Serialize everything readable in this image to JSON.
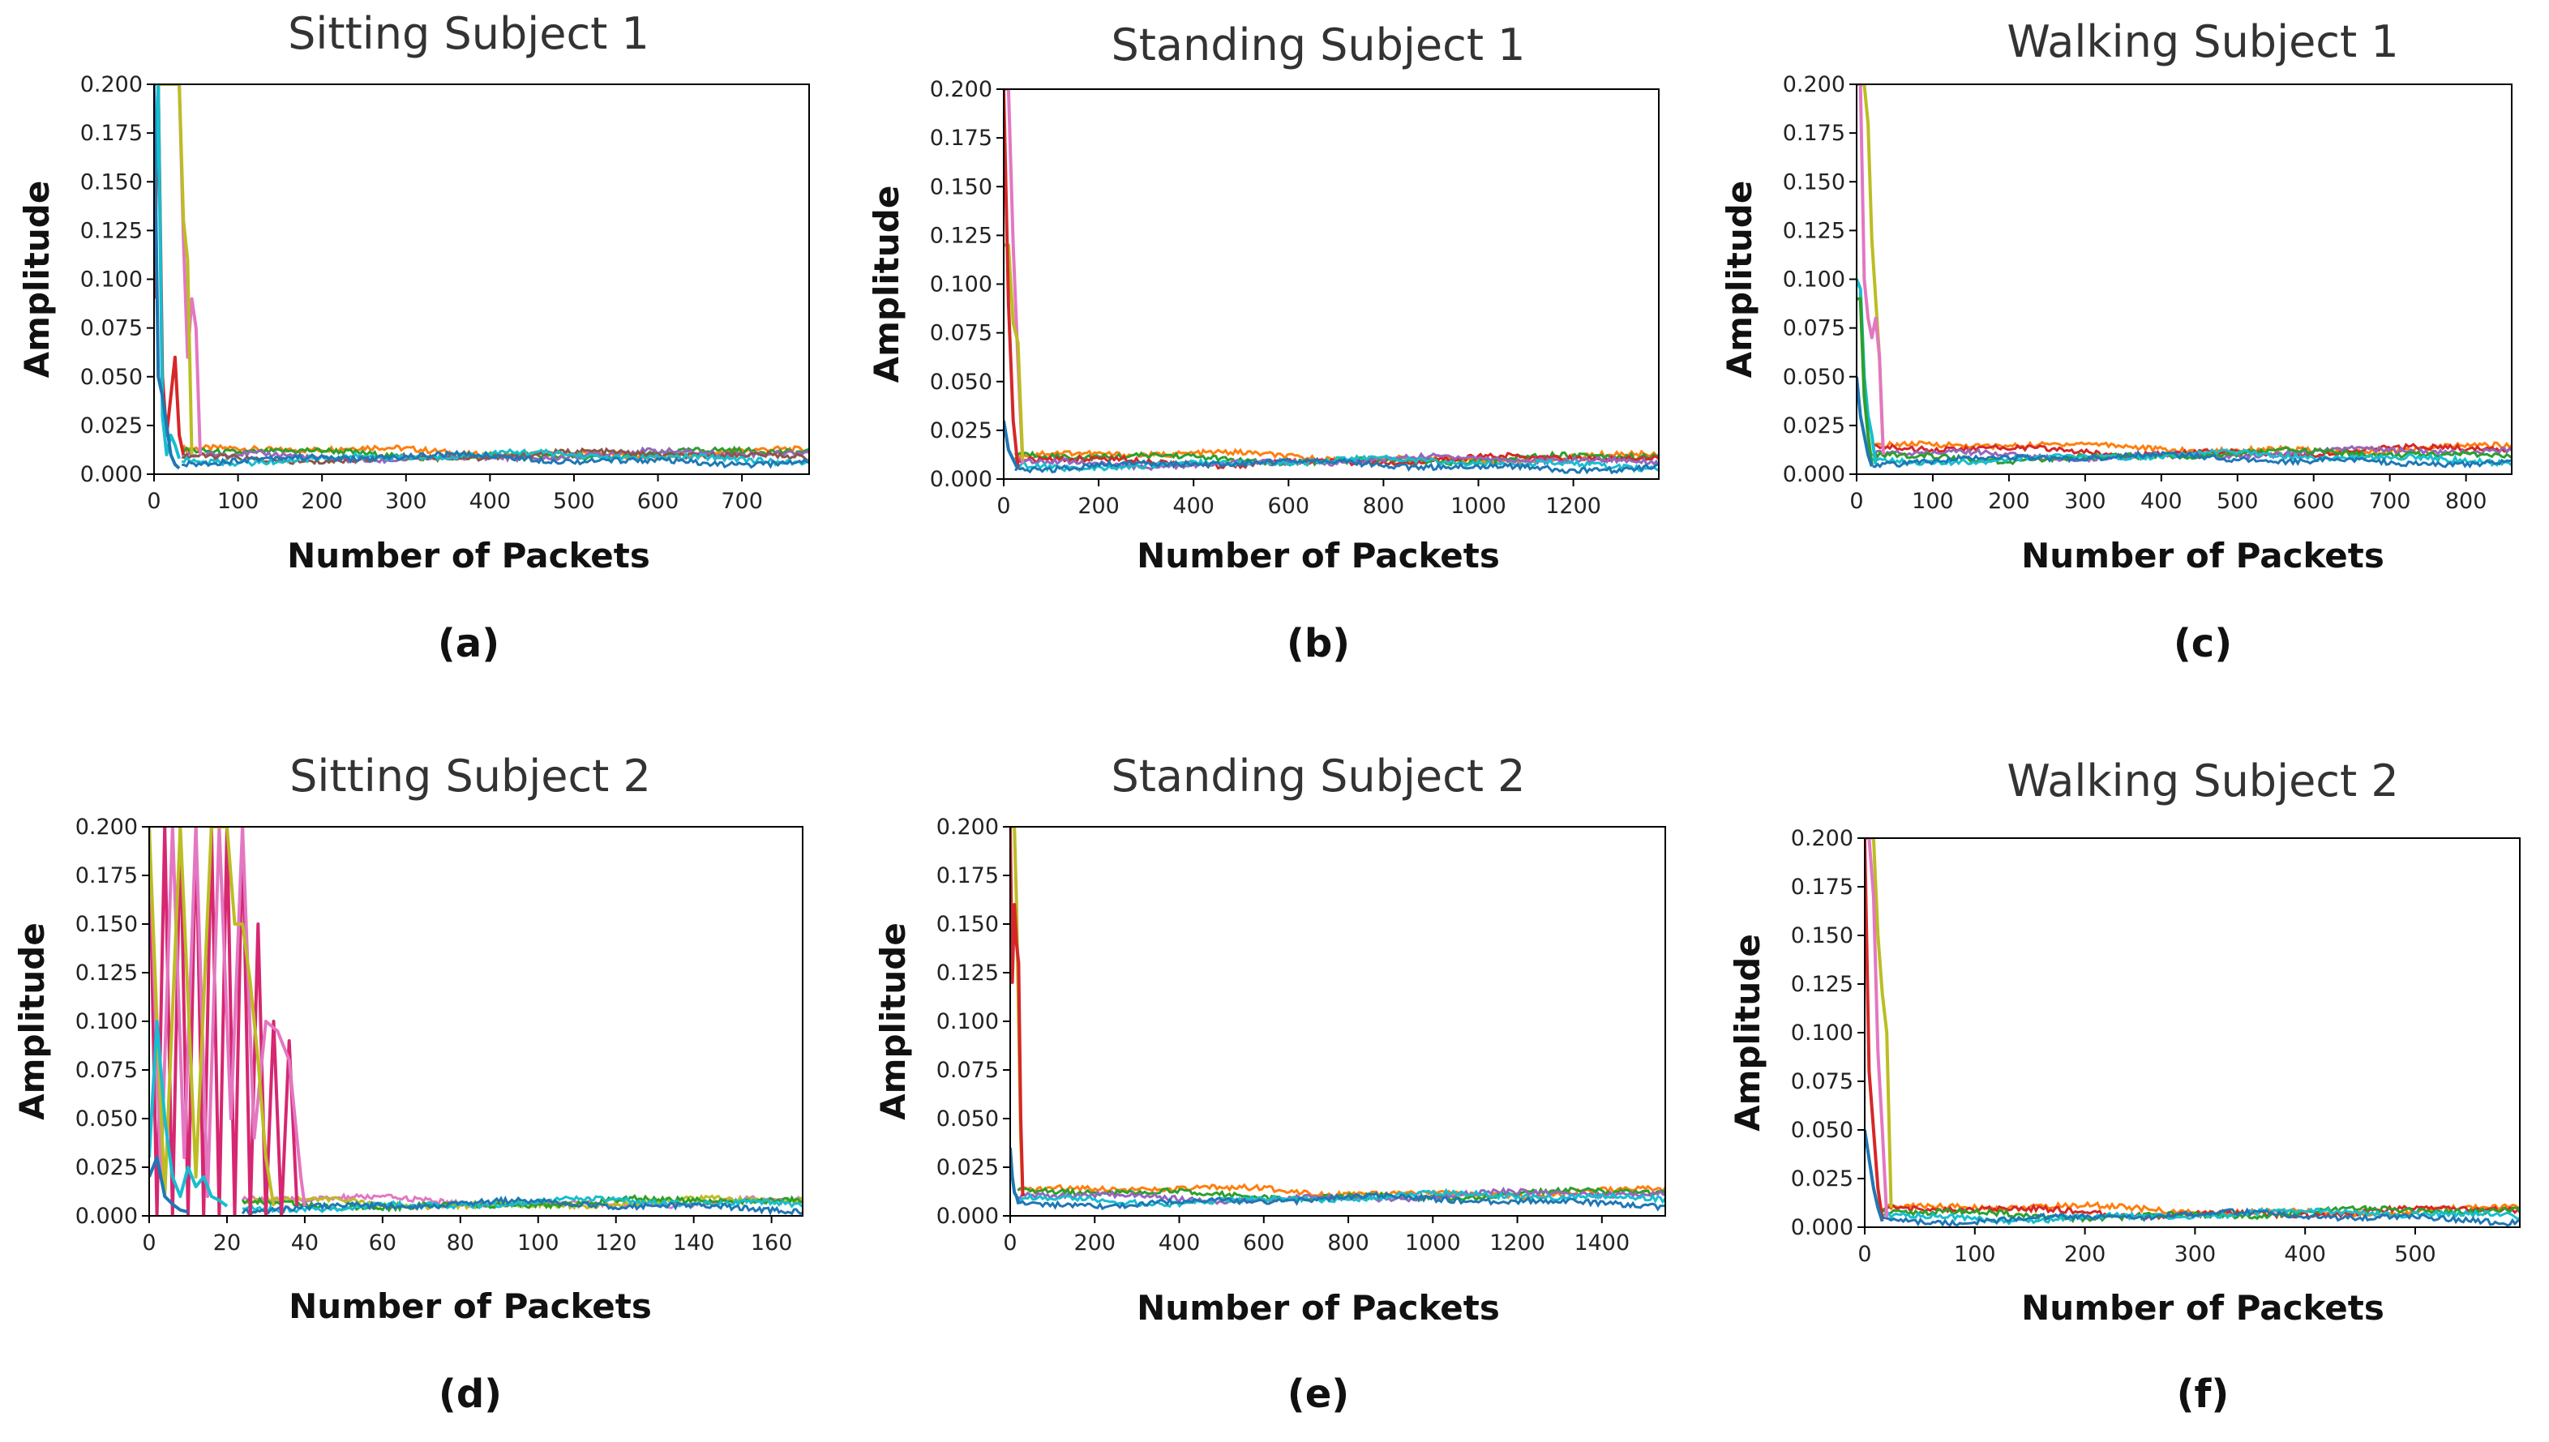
{
  "chart_data": [
    {
      "type": "line",
      "panel": "(a)",
      "title": "Sitting Subject 1",
      "xlabel": "Number of Packets",
      "ylabel": "Amplitude",
      "xlim": [
        0,
        780
      ],
      "ylim": [
        0,
        0.2
      ],
      "xticks": [
        0,
        100,
        200,
        300,
        400,
        500,
        600,
        700
      ],
      "yticks": [
        0.0,
        0.025,
        0.05,
        0.075,
        0.1,
        0.125,
        0.15,
        0.175,
        0.2
      ],
      "ytick_labels": [
        "0.000",
        "0.025",
        "0.050",
        "0.075",
        "0.100",
        "0.125",
        "0.150",
        "0.175",
        "0.200"
      ],
      "spike_end": 55,
      "series": [
        {
          "name": "subcarrier-pink",
          "color": "#e377c2",
          "x": [
            0,
            5,
            10,
            15,
            20,
            25,
            30,
            35,
            40,
            45,
            50,
            55
          ],
          "values": [
            0.2,
            0.2,
            0.2,
            0.2,
            0.2,
            0.2,
            0.2,
            0.12,
            0.06,
            0.09,
            0.075,
            0.01
          ]
        },
        {
          "name": "subcarrier-olive",
          "color": "#bcbd22",
          "x": [
            0,
            5,
            10,
            15,
            20,
            25,
            30,
            35,
            40,
            45
          ],
          "values": [
            0.2,
            0.2,
            0.2,
            0.2,
            0.2,
            0.2,
            0.2,
            0.13,
            0.11,
            0.01
          ]
        },
        {
          "name": "subcarrier-red",
          "color": "#d62728",
          "x": [
            0,
            5,
            10,
            15,
            20,
            25,
            30,
            35
          ],
          "values": [
            0.09,
            0.2,
            0.05,
            0.02,
            0.04,
            0.06,
            0.02,
            0.01
          ]
        },
        {
          "name": "subcarrier-cyan",
          "color": "#17becf",
          "x": [
            0,
            5,
            10,
            15,
            20,
            25,
            30
          ],
          "values": [
            0.12,
            0.2,
            0.03,
            0.01,
            0.02,
            0.015,
            0.008
          ]
        },
        {
          "name": "subcarrier-blue",
          "color": "#1f77b4",
          "x": [
            0,
            5,
            10,
            15,
            20,
            25,
            30
          ],
          "values": [
            0.2,
            0.05,
            0.04,
            0.025,
            0.01,
            0.005,
            0.003
          ]
        }
      ],
      "baseline": [
        {
          "color": "#ff7f0e",
          "level": 0.0115
        },
        {
          "color": "#2ca02c",
          "level": 0.0105
        },
        {
          "color": "#9467bd",
          "level": 0.0095
        },
        {
          "color": "#8c564b",
          "level": 0.009
        },
        {
          "color": "#17becf",
          "level": 0.0085
        },
        {
          "color": "#1f77b4",
          "level": 0.0075
        }
      ]
    },
    {
      "type": "line",
      "panel": "(b)",
      "title": "Standing Subject 1",
      "xlabel": "Number of Packets",
      "ylabel": "Amplitude",
      "xlim": [
        0,
        1380
      ],
      "ylim": [
        0,
        0.2
      ],
      "xticks": [
        0,
        200,
        400,
        600,
        800,
        1000,
        1200
      ],
      "yticks": [
        0.0,
        0.025,
        0.05,
        0.075,
        0.1,
        0.125,
        0.15,
        0.175,
        0.2
      ],
      "ytick_labels": [
        "0.000",
        "0.025",
        "0.050",
        "0.075",
        "0.100",
        "0.125",
        "0.150",
        "0.175",
        "0.200"
      ],
      "spike_end": 40,
      "series": [
        {
          "name": "subcarrier-pink",
          "color": "#e377c2",
          "x": [
            0,
            10,
            20,
            30,
            40
          ],
          "values": [
            0.2,
            0.2,
            0.12,
            0.06,
            0.008
          ]
        },
        {
          "name": "subcarrier-olive",
          "color": "#bcbd22",
          "x": [
            0,
            10,
            20,
            30,
            40
          ],
          "values": [
            0.12,
            0.12,
            0.08,
            0.07,
            0.01
          ]
        },
        {
          "name": "subcarrier-red",
          "color": "#d62728",
          "x": [
            0,
            10,
            20,
            30
          ],
          "values": [
            0.2,
            0.09,
            0.03,
            0.006
          ]
        },
        {
          "name": "subcarrier-blue",
          "color": "#1f77b4",
          "x": [
            0,
            10,
            20,
            30
          ],
          "values": [
            0.03,
            0.015,
            0.01,
            0.005
          ]
        }
      ],
      "baseline": [
        {
          "color": "#ff7f0e",
          "level": 0.0115
        },
        {
          "color": "#2ca02c",
          "level": 0.0105
        },
        {
          "color": "#d62728",
          "level": 0.0095
        },
        {
          "color": "#9467bd",
          "level": 0.009
        },
        {
          "color": "#17becf",
          "level": 0.008
        },
        {
          "color": "#1f77b4",
          "level": 0.007
        }
      ]
    },
    {
      "type": "line",
      "panel": "(c)",
      "title": "Walking Subject 1",
      "xlabel": "Number of Packets",
      "ylabel": "Amplitude",
      "xlim": [
        0,
        860
      ],
      "ylim": [
        0,
        0.2
      ],
      "xticks": [
        0,
        100,
        200,
        300,
        400,
        500,
        600,
        700,
        800
      ],
      "yticks": [
        0.0,
        0.025,
        0.05,
        0.075,
        0.1,
        0.125,
        0.15,
        0.175,
        0.2
      ],
      "ytick_labels": [
        "0.000",
        "0.025",
        "0.050",
        "0.075",
        "0.100",
        "0.125",
        "0.150",
        "0.175",
        "0.200"
      ],
      "spike_end": 35,
      "series": [
        {
          "name": "subcarrier-olive",
          "color": "#bcbd22",
          "x": [
            0,
            5,
            10,
            15,
            20,
            25,
            30,
            35
          ],
          "values": [
            0.2,
            0.2,
            0.2,
            0.18,
            0.12,
            0.09,
            0.06,
            0.01
          ]
        },
        {
          "name": "subcarrier-pink",
          "color": "#e377c2",
          "x": [
            0,
            5,
            10,
            15,
            20,
            25,
            30,
            35
          ],
          "values": [
            0.2,
            0.2,
            0.1,
            0.08,
            0.07,
            0.08,
            0.06,
            0.01
          ]
        },
        {
          "name": "subcarrier-cyan",
          "color": "#17becf",
          "x": [
            0,
            5,
            10,
            15,
            20,
            25
          ],
          "values": [
            0.1,
            0.095,
            0.05,
            0.03,
            0.02,
            0.005
          ]
        },
        {
          "name": "subcarrier-green",
          "color": "#2ca02c",
          "x": [
            0,
            5,
            10,
            15,
            20
          ],
          "values": [
            0.09,
            0.09,
            0.04,
            0.02,
            0.005
          ]
        },
        {
          "name": "subcarrier-blue",
          "color": "#1f77b4",
          "x": [
            0,
            5,
            10,
            15,
            20
          ],
          "values": [
            0.05,
            0.03,
            0.02,
            0.01,
            0.004
          ]
        }
      ],
      "baseline": [
        {
          "color": "#ff7f0e",
          "level": 0.0135
        },
        {
          "color": "#d62728",
          "level": 0.012
        },
        {
          "color": "#9467bd",
          "level": 0.0105
        },
        {
          "color": "#2ca02c",
          "level": 0.0095
        },
        {
          "color": "#17becf",
          "level": 0.0085
        },
        {
          "color": "#1f77b4",
          "level": 0.0075
        }
      ]
    },
    {
      "type": "line",
      "panel": "(d)",
      "title": "Sitting Subject 2",
      "xlabel": "Number of Packets",
      "ylabel": "Amplitude",
      "xlim": [
        0,
        168
      ],
      "ylim": [
        0,
        0.2
      ],
      "xticks": [
        0,
        20,
        40,
        60,
        80,
        100,
        120,
        140,
        160
      ],
      "yticks": [
        0.0,
        0.025,
        0.05,
        0.075,
        0.1,
        0.125,
        0.15,
        0.175,
        0.2
      ],
      "ytick_labels": [
        "0.000",
        "0.025",
        "0.050",
        "0.075",
        "0.100",
        "0.125",
        "0.150",
        "0.175",
        "0.200"
      ],
      "spike_end": 40,
      "series": [
        {
          "name": "subcarrier-crimson",
          "color": "#d62770",
          "x": [
            0,
            2,
            4,
            6,
            8,
            10,
            12,
            14,
            16,
            18,
            20,
            22,
            24,
            26,
            28,
            30,
            32,
            34,
            36,
            38
          ],
          "values": [
            0.2,
            0.0,
            0.2,
            0.0,
            0.2,
            0.0,
            0.2,
            0.0,
            0.2,
            0.0,
            0.2,
            0.0,
            0.2,
            0.0,
            0.15,
            0.0,
            0.1,
            0.0,
            0.09,
            0.005
          ]
        },
        {
          "name": "subcarrier-pink",
          "color": "#e377c2",
          "x": [
            0,
            3,
            6,
            9,
            12,
            15,
            18,
            21,
            24,
            27,
            30,
            33,
            36,
            39,
            40
          ],
          "values": [
            0.2,
            0.02,
            0.2,
            0.03,
            0.2,
            0.01,
            0.2,
            0.05,
            0.2,
            0.04,
            0.1,
            0.095,
            0.08,
            0.02,
            0.005
          ]
        },
        {
          "name": "subcarrier-olive",
          "color": "#bcbd22",
          "x": [
            0,
            2,
            4,
            8,
            12,
            16,
            20,
            22,
            24,
            26,
            28,
            30,
            32
          ],
          "values": [
            0.2,
            0.1,
            0.01,
            0.2,
            0.02,
            0.2,
            0.2,
            0.15,
            0.15,
            0.12,
            0.08,
            0.03,
            0.005
          ]
        },
        {
          "name": "subcarrier-cyan",
          "color": "#17becf",
          "x": [
            0,
            2,
            4,
            6,
            8,
            10,
            12,
            14,
            16,
            18,
            20
          ],
          "values": [
            0.03,
            0.1,
            0.05,
            0.02,
            0.01,
            0.025,
            0.015,
            0.02,
            0.01,
            0.008,
            0.005
          ]
        },
        {
          "name": "subcarrier-blue",
          "color": "#1f77b4",
          "x": [
            0,
            2,
            4,
            6,
            8,
            10
          ],
          "values": [
            0.02,
            0.03,
            0.01,
            0.006,
            0.003,
            0.002
          ]
        }
      ],
      "baseline": [
        {
          "color": "#e377c2",
          "level": 0.0075
        },
        {
          "color": "#bcbd22",
          "level": 0.007
        },
        {
          "color": "#2ca02c",
          "level": 0.0065
        },
        {
          "color": "#17becf",
          "level": 0.006
        },
        {
          "color": "#1f77b4",
          "level": 0.005
        }
      ]
    },
    {
      "type": "line",
      "panel": "(e)",
      "title": "Standing Subject 2",
      "xlabel": "Number of Packets",
      "ylabel": "Amplitude",
      "xlim": [
        0,
        1550
      ],
      "ylim": [
        0,
        0.2
      ],
      "xticks": [
        0,
        200,
        400,
        600,
        800,
        1000,
        1200,
        1400
      ],
      "yticks": [
        0.0,
        0.025,
        0.05,
        0.075,
        0.1,
        0.125,
        0.15,
        0.175,
        0.2
      ],
      "ytick_labels": [
        "0.000",
        "0.025",
        "0.050",
        "0.075",
        "0.100",
        "0.125",
        "0.150",
        "0.175",
        "0.200"
      ],
      "spike_end": 30,
      "series": [
        {
          "name": "subcarrier-olive",
          "color": "#bcbd22",
          "x": [
            0,
            5,
            10,
            15,
            20,
            25,
            30
          ],
          "values": [
            0.2,
            0.2,
            0.2,
            0.16,
            0.1,
            0.04,
            0.01
          ]
        },
        {
          "name": "subcarrier-red",
          "color": "#d62728",
          "x": [
            0,
            5,
            10,
            15,
            20,
            25,
            30
          ],
          "values": [
            0.2,
            0.12,
            0.16,
            0.14,
            0.13,
            0.05,
            0.01
          ]
        },
        {
          "name": "subcarrier-blue",
          "color": "#1f77b4",
          "x": [
            0,
            5,
            10,
            15,
            20
          ],
          "values": [
            0.035,
            0.02,
            0.012,
            0.01,
            0.006
          ]
        }
      ],
      "baseline": [
        {
          "color": "#ff7f0e",
          "level": 0.0125
        },
        {
          "color": "#2ca02c",
          "level": 0.011
        },
        {
          "color": "#9467bd",
          "level": 0.01
        },
        {
          "color": "#17becf",
          "level": 0.009
        },
        {
          "color": "#1f77b4",
          "level": 0.0075
        }
      ]
    },
    {
      "type": "line",
      "panel": "(f)",
      "title": "Walking Subject 2",
      "xlabel": "Number of Packets",
      "ylabel": "Amplitude",
      "xlim": [
        0,
        595
      ],
      "ylim": [
        0,
        0.2
      ],
      "xticks": [
        0,
        100,
        200,
        300,
        400,
        500
      ],
      "yticks": [
        0.0,
        0.025,
        0.05,
        0.075,
        0.1,
        0.125,
        0.15,
        0.175,
        0.2
      ],
      "ytick_labels": [
        "0.000",
        "0.025",
        "0.050",
        "0.075",
        "0.100",
        "0.125",
        "0.150",
        "0.175",
        "0.200"
      ],
      "spike_end": 25,
      "series": [
        {
          "name": "subcarrier-olive",
          "color": "#bcbd22",
          "x": [
            0,
            4,
            8,
            12,
            16,
            20,
            24
          ],
          "values": [
            0.2,
            0.2,
            0.2,
            0.15,
            0.12,
            0.1,
            0.01
          ]
        },
        {
          "name": "subcarrier-pink",
          "color": "#e377c2",
          "x": [
            0,
            4,
            8,
            12,
            16,
            20
          ],
          "values": [
            0.2,
            0.2,
            0.17,
            0.09,
            0.05,
            0.005
          ]
        },
        {
          "name": "subcarrier-red",
          "color": "#d62728",
          "x": [
            0,
            4,
            8,
            12,
            16
          ],
          "values": [
            0.2,
            0.08,
            0.05,
            0.02,
            0.004
          ]
        },
        {
          "name": "subcarrier-blue",
          "color": "#1f77b4",
          "x": [
            0,
            4,
            8,
            12,
            16
          ],
          "values": [
            0.05,
            0.035,
            0.02,
            0.01,
            0.003
          ]
        }
      ],
      "baseline": [
        {
          "color": "#ff7f0e",
          "level": 0.009
        },
        {
          "color": "#d62728",
          "level": 0.008
        },
        {
          "color": "#2ca02c",
          "level": 0.007
        },
        {
          "color": "#17becf",
          "level": 0.006
        },
        {
          "color": "#1f77b4",
          "level": 0.005
        }
      ]
    }
  ]
}
